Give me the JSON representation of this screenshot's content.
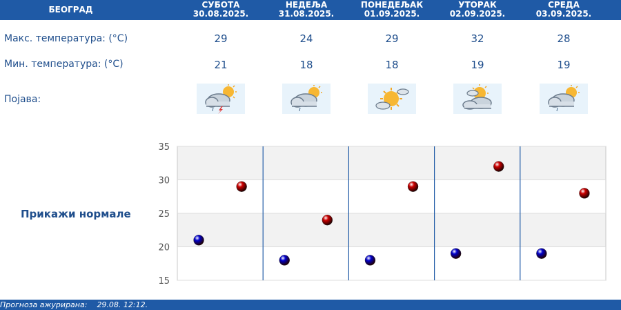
{
  "header": {
    "city": "БЕОГРАД",
    "days": [
      {
        "name": "СУБОТА",
        "date": "30.08.2025."
      },
      {
        "name": "НЕДЕЉА",
        "date": "31.08.2025."
      },
      {
        "name": "ПОНЕДЕЉАК",
        "date": "01.09.2025."
      },
      {
        "name": "УТОРАК",
        "date": "02.09.2025."
      },
      {
        "name": "СРЕДА",
        "date": "03.09.2025."
      }
    ]
  },
  "rows": {
    "max_label": "Макс. температура: (°C)",
    "min_label": "Мин. температура: (°C)",
    "phenomenon_label": "Појава:",
    "max": [
      "29",
      "24",
      "29",
      "32",
      "28"
    ],
    "min": [
      "21",
      "18",
      "18",
      "19",
      "19"
    ],
    "icons": [
      "partly-cloudy-thunderstorm-icon",
      "partly-cloudy-rain-icon",
      "sunny-few-clouds-icon",
      "sun-behind-clouds-icon",
      "partly-cloudy-rain-icon"
    ]
  },
  "normals_button": "Прикажи нормале",
  "footer": {
    "label": "Прогноза ажурирана:",
    "value": "29.08. 12:12."
  },
  "colors": {
    "header_bg": "#1f5aa6",
    "text": "#1f4e8c",
    "max_marker": "#cc0000",
    "min_marker": "#0000cc"
  },
  "chart_data": {
    "type": "scatter",
    "categories": [
      "30.08.2025.",
      "31.08.2025.",
      "01.09.2025.",
      "02.09.2025.",
      "03.09.2025."
    ],
    "series": [
      {
        "values": [
          29,
          24,
          29,
          32,
          28
        ],
        "color": "#cc0000"
      },
      {
        "values": [
          21,
          18,
          18,
          19,
          19
        ],
        "color": "#0000cc"
      }
    ],
    "yticks": [
      15,
      20,
      25,
      30,
      35
    ],
    "ylim": [
      15,
      35
    ],
    "grid": true
  }
}
